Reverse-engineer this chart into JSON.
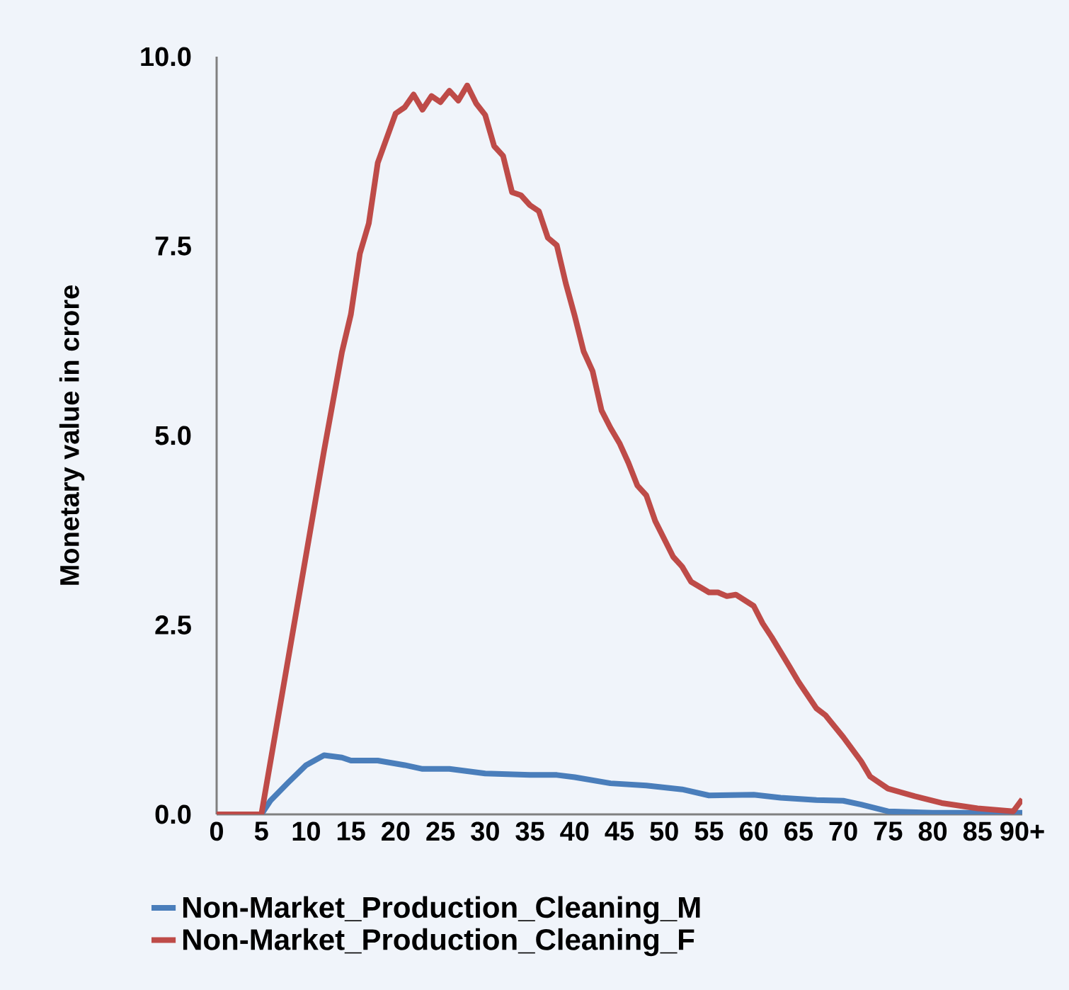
{
  "chart_data": {
    "type": "line",
    "ylabel": "Monetary value in crore",
    "xlim": [
      0,
      90
    ],
    "ylim": [
      0,
      10
    ],
    "xticks": [
      0,
      5,
      10,
      15,
      20,
      25,
      30,
      35,
      40,
      45,
      50,
      55,
      60,
      65,
      70,
      75,
      80,
      85,
      {
        "value": 90,
        "label": "90+"
      }
    ],
    "yticks": [
      {
        "value": 0,
        "label": "0.0"
      },
      {
        "value": 2.5,
        "label": "2.5"
      },
      {
        "value": 5,
        "label": "5.0"
      },
      {
        "value": 7.5,
        "label": "7.5"
      },
      {
        "value": 10,
        "label": "10.0"
      }
    ],
    "grid": false,
    "legend": "bottom",
    "marker": "none",
    "line_style": "solid",
    "series": [
      {
        "name": "Non-Market_Production_Cleaning_M",
        "color": "#4a7ebb",
        "x": [
          0,
          5,
          6,
          8,
          10,
          12,
          14,
          15,
          18,
          21,
          23,
          26,
          30,
          35,
          38,
          40,
          44,
          48,
          52,
          55,
          60,
          63,
          67,
          70,
          72,
          75,
          80,
          90
        ],
        "values": [
          0,
          0,
          0.18,
          0.42,
          0.65,
          0.78,
          0.75,
          0.71,
          0.71,
          0.65,
          0.6,
          0.6,
          0.54,
          0.52,
          0.52,
          0.49,
          0.41,
          0.38,
          0.33,
          0.25,
          0.26,
          0.22,
          0.19,
          0.18,
          0.13,
          0.04,
          0.02,
          0.02
        ]
      },
      {
        "name": "Non-Market_Production_Cleaning_F",
        "color": "#be4b48",
        "x": [
          0,
          5,
          12,
          14,
          15,
          16,
          17,
          18,
          20,
          21,
          22,
          23,
          24,
          25,
          26,
          27,
          28,
          29,
          30,
          31,
          32,
          33,
          34,
          35,
          36,
          37,
          38,
          39,
          40,
          41,
          42,
          43,
          44,
          45,
          46,
          47,
          48,
          49,
          51,
          52,
          53,
          55,
          56,
          57,
          58,
          60,
          61,
          62,
          64,
          65,
          67,
          68,
          70,
          72,
          73,
          75,
          78,
          81,
          85,
          89,
          90
        ],
        "values": [
          0,
          0,
          4.8,
          6.1,
          6.6,
          7.4,
          7.8,
          8.6,
          9.25,
          9.33,
          9.5,
          9.3,
          9.48,
          9.4,
          9.55,
          9.42,
          9.62,
          9.38,
          9.23,
          8.82,
          8.69,
          8.21,
          8.17,
          8.04,
          7.96,
          7.61,
          7.51,
          7.01,
          6.58,
          6.11,
          5.85,
          5.33,
          5.1,
          4.9,
          4.64,
          4.34,
          4.21,
          3.87,
          3.4,
          3.27,
          3.07,
          2.93,
          2.93,
          2.88,
          2.9,
          2.75,
          2.52,
          2.34,
          1.95,
          1.75,
          1.4,
          1.31,
          1.02,
          0.7,
          0.5,
          0.34,
          0.24,
          0.15,
          0.08,
          0.04,
          0.2
        ]
      }
    ]
  }
}
